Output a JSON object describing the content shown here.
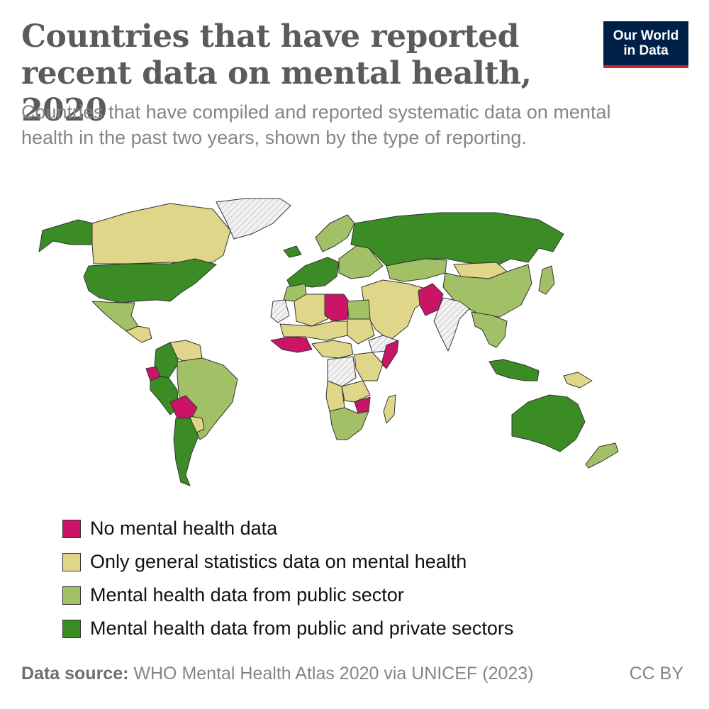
{
  "header": {
    "title": "Countries that have reported recent data on mental health, 2020",
    "subtitle": "Countries that have compiled and reported systematic data on mental health in the past two years, shown by the type of reporting."
  },
  "logo": {
    "line1": "Our World",
    "line2": "in Data"
  },
  "legend": [
    {
      "label": "No mental health data",
      "color": "#cc1467"
    },
    {
      "label": "Only general statistics data on mental health",
      "color": "#dfd68a"
    },
    {
      "label": "Mental health data from public sector",
      "color": "#a2c066"
    },
    {
      "label": "Mental health data from public and private sectors",
      "color": "#3b8c24"
    }
  ],
  "colors": {
    "no_data": "#f2f2f2",
    "hatch": "#c8c8c8",
    "border": "#333333"
  },
  "regions": [
    {
      "name": "Alaska",
      "category": 3
    },
    {
      "name": "Canada",
      "category": 1
    },
    {
      "name": "United States",
      "category": 3
    },
    {
      "name": "Mexico",
      "category": 2
    },
    {
      "name": "Central America",
      "category": 1
    },
    {
      "name": "Colombia",
      "category": 3
    },
    {
      "name": "Venezuela",
      "category": 1
    },
    {
      "name": "Ecuador",
      "category": 0
    },
    {
      "name": "Peru",
      "category": 3
    },
    {
      "name": "Brazil",
      "category": 2
    },
    {
      "name": "Bolivia",
      "category": 0
    },
    {
      "name": "Paraguay",
      "category": 1
    },
    {
      "name": "Argentina",
      "category": 3
    },
    {
      "name": "Greenland",
      "category": -1
    },
    {
      "name": "Iceland",
      "category": 3
    },
    {
      "name": "Western Europe",
      "category": 3
    },
    {
      "name": "Scandinavia",
      "category": 2
    },
    {
      "name": "Eastern Europe",
      "category": 2
    },
    {
      "name": "Russia",
      "category": 3
    },
    {
      "name": "Kazakhstan",
      "category": 2
    },
    {
      "name": "Mongolia",
      "category": 1
    },
    {
      "name": "China",
      "category": 2
    },
    {
      "name": "Japan",
      "category": 2
    },
    {
      "name": "Middle East",
      "category": 1
    },
    {
      "name": "Pakistan",
      "category": 0
    },
    {
      "name": "India",
      "category": -1
    },
    {
      "name": "Southeast Asia",
      "category": 2
    },
    {
      "name": "Indonesia",
      "category": 3
    },
    {
      "name": "Papua New Guinea",
      "category": 1
    },
    {
      "name": "Australia",
      "category": 3
    },
    {
      "name": "New Zealand",
      "category": 2
    },
    {
      "name": "Morocco",
      "category": 2
    },
    {
      "name": "Western Sahara",
      "category": -1
    },
    {
      "name": "Algeria",
      "category": 1
    },
    {
      "name": "Libya",
      "category": 0
    },
    {
      "name": "Egypt",
      "category": 2
    },
    {
      "name": "Sahel",
      "category": 1
    },
    {
      "name": "Sudan",
      "category": 1
    },
    {
      "name": "West Africa",
      "category": 0
    },
    {
      "name": "Central Africa",
      "category": 1
    },
    {
      "name": "Horn of Africa",
      "category": -1
    },
    {
      "name": "Somalia",
      "category": 0
    },
    {
      "name": "East Africa",
      "category": 1
    },
    {
      "name": "DR Congo",
      "category": -1
    },
    {
      "name": "Angola",
      "category": 1
    },
    {
      "name": "Zambia",
      "category": 1
    },
    {
      "name": "Zimbabwe",
      "category": 0
    },
    {
      "name": "Southern Africa",
      "category": 2
    },
    {
      "name": "Madagascar",
      "category": 1
    }
  ],
  "footer": {
    "source_label": "Data source:",
    "source_text": "WHO Mental Health Atlas 2020 via UNICEF (2023)",
    "license": "CC BY"
  }
}
